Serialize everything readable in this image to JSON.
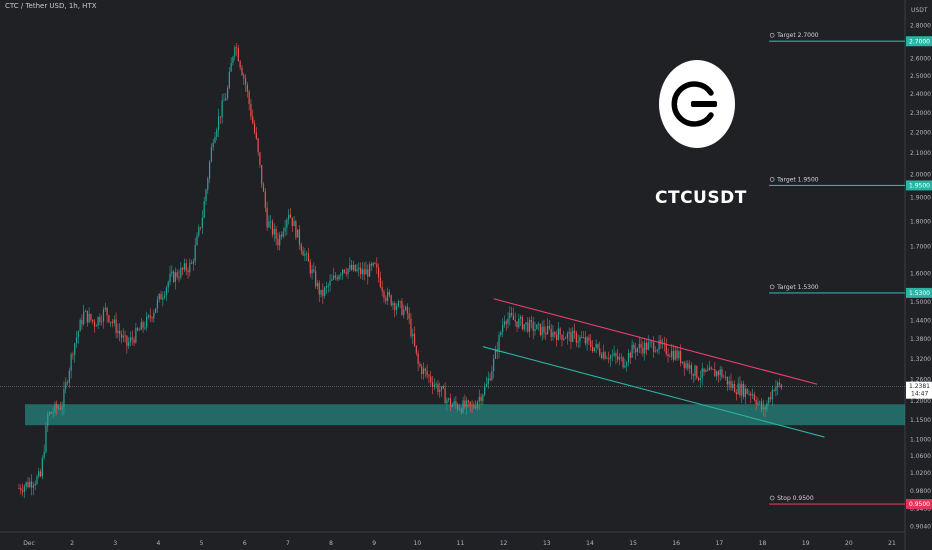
{
  "header": {
    "title": "CTC / Tether USD, 1h, HTX"
  },
  "overlay": {
    "ticker": "CTCUSDT",
    "logo_icon": "ctc-logo-icon"
  },
  "colors": {
    "background": "#1f2125",
    "up": "#26a69a",
    "down": "#ef5350",
    "zone": "#26a69a",
    "upper_trendline": "#ec3e6e",
    "lower_trendline": "#2bb3a3",
    "target_line": "#2bb3a3",
    "stop_line": "#e2355a"
  },
  "chart_data": {
    "type": "candlestick",
    "title": "CTC / Tether USD, 1h, HTX",
    "price_axis_unit": "USDT",
    "y_scale": "log",
    "ylim": [
      0.9,
      2.95
    ],
    "x_ticks": [
      "Dec",
      "2",
      "3",
      "4",
      "5",
      "6",
      "7",
      "8",
      "9",
      "10",
      "11",
      "12",
      "13",
      "14",
      "15",
      "16",
      "17",
      "18",
      "19",
      "20",
      "21"
    ],
    "y_ticks": [
      0.904,
      0.94,
      0.98,
      1.02,
      1.06,
      1.1,
      1.15,
      1.2,
      1.26,
      1.32,
      1.38,
      1.44,
      1.5,
      1.6,
      1.7,
      1.8,
      1.9,
      2.0,
      2.1,
      2.2,
      2.3,
      2.4,
      2.5,
      2.6,
      2.8
    ],
    "y_tick_labels": [
      "0.9040",
      "0.9400",
      "0.9800",
      "1.0200",
      "1.0600",
      "1.1000",
      "1.1500",
      "1.2000",
      "1.2600",
      "1.3200",
      "1.3800",
      "1.4400",
      "1.5000",
      "1.6000",
      "1.7000",
      "1.8000",
      "1.9000",
      "2.0000",
      "2.1000",
      "2.2000",
      "2.3000",
      "2.4000",
      "2.5000",
      "2.6000",
      "2.8000"
    ],
    "path_points": [
      [
        "Dec 1 00:00",
        0.985
      ],
      [
        "Dec 1 12:00",
        1.01
      ],
      [
        "Dec 1 16:00",
        1.16
      ],
      [
        "Dec 2 00:00",
        1.19
      ],
      [
        "Dec 2 06:00",
        1.35
      ],
      [
        "Dec 2 12:00",
        1.46
      ],
      [
        "Dec 2 18:00",
        1.43
      ],
      [
        "Dec 3 00:00",
        1.47
      ],
      [
        "Dec 3 12:00",
        1.36
      ],
      [
        "Dec 4 00:00",
        1.44
      ],
      [
        "Dec 4 12:00",
        1.58
      ],
      [
        "Dec 5 00:00",
        1.63
      ],
      [
        "Dec 5 06:00",
        1.82
      ],
      [
        "Dec 5 12:00",
        2.18
      ],
      [
        "Dec 5 20:00",
        2.42
      ],
      [
        "Dec 6 00:00",
        2.7
      ],
      [
        "Dec 6 06:00",
        2.45
      ],
      [
        "Dec 6 12:00",
        2.15
      ],
      [
        "Dec 6 18:00",
        1.8
      ],
      [
        "Dec 7 00:00",
        1.72
      ],
      [
        "Dec 7 06:00",
        1.84
      ],
      [
        "Dec 7 12:00",
        1.72
      ],
      [
        "Dec 8 00:00",
        1.52
      ],
      [
        "Dec 8 12:00",
        1.62
      ],
      [
        "Dec 9 00:00",
        1.6
      ],
      [
        "Dec 9 06:00",
        1.62
      ],
      [
        "Dec 9 12:00",
        1.52
      ],
      [
        "Dec 10 00:00",
        1.46
      ],
      [
        "Dec 10 06:00",
        1.3
      ],
      [
        "Dec 10 18:00",
        1.23
      ],
      [
        "Dec 11 00:00",
        1.19
      ],
      [
        "Dec 11 12:00",
        1.18
      ],
      [
        "Dec 11 20:00",
        1.24
      ],
      [
        "Dec 12 00:00",
        1.31
      ],
      [
        "Dec 12 06:00",
        1.45
      ],
      [
        "Dec 13 00:00",
        1.41
      ],
      [
        "Dec 14 00:00",
        1.38
      ],
      [
        "Dec 14 12:00",
        1.34
      ],
      [
        "Dec 15 00:00",
        1.31
      ],
      [
        "Dec 15 06:00",
        1.35
      ],
      [
        "Dec 15 18:00",
        1.36
      ],
      [
        "Dec 16 06:00",
        1.33
      ],
      [
        "Dec 16 18:00",
        1.27
      ],
      [
        "Dec 17 06:00",
        1.28
      ],
      [
        "Dec 17 12:00",
        1.24
      ],
      [
        "Dec 18 00:00",
        1.22
      ],
      [
        "Dec 18 06:00",
        1.17
      ],
      [
        "Dec 18 12:00",
        1.24
      ],
      [
        "Dec 18 16:00",
        1.238
      ]
    ],
    "last_price": {
      "value": 1.2381,
      "label": "1.2381",
      "countdown": "14:47"
    },
    "support_zone": {
      "from": 1.135,
      "to": 1.19,
      "start": "Dec 1 00:00",
      "end": "right-edge"
    },
    "upper_trendline": {
      "p1": [
        "Dec 12 00:00",
        1.51
      ],
      "p2": [
        "Dec 19 12:00",
        1.245
      ]
    },
    "lower_trendline": {
      "p1": [
        "Dec 11 18:00",
        1.355
      ],
      "p2": [
        "Dec 19 16:00",
        1.105
      ]
    },
    "annotations": [
      {
        "kind": "target",
        "value": 2.7,
        "label": "Target 2.7000",
        "axis_label": "2.7000",
        "start": "Dec 18 12:00"
      },
      {
        "kind": "target",
        "value": 1.95,
        "label": "Target 1.9500",
        "axis_label": "1.9500",
        "start": "Dec 18 12:00"
      },
      {
        "kind": "target",
        "value": 1.53,
        "label": "Target 1.5300",
        "axis_label": "1.5300",
        "start": "Dec 18 12:00"
      },
      {
        "kind": "stop",
        "value": 0.95,
        "label": "Stop 0.9500",
        "axis_label": "0.9500",
        "start": "Dec 18 12:00"
      }
    ]
  }
}
